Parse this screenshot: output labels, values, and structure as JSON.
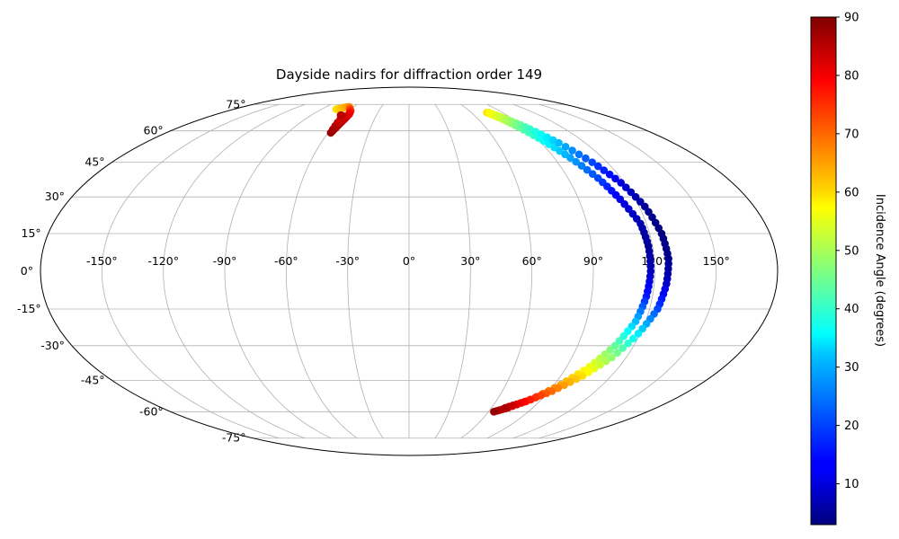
{
  "chart_data": {
    "type": "scatter",
    "projection": "mollweide",
    "title": "Dayside nadirs for diffraction order 149",
    "grid": true,
    "x_ticks": [
      "-150°",
      "-120°",
      "-90°",
      "-60°",
      "-30°",
      "0°",
      "30°",
      "60°",
      "90°",
      "120°",
      "150°"
    ],
    "y_ticks": [
      "-75°",
      "-60°",
      "-45°",
      "-30°",
      "-15°",
      "0°",
      "15°",
      "30°",
      "45°",
      "60°",
      "75°"
    ],
    "lon_grid": [
      -150,
      -120,
      -90,
      -60,
      -30,
      0,
      30,
      60,
      90,
      120,
      150
    ],
    "lat_grid": [
      -75,
      -60,
      -45,
      -30,
      -15,
      15,
      30,
      45,
      60,
      75
    ],
    "colorbar": {
      "label": "Incidence Angle (degrees)",
      "ticks": [
        "10",
        "20",
        "30",
        "40",
        "50",
        "60",
        "70",
        "80",
        "90"
      ],
      "min": 3,
      "max": 90,
      "colormap": "jet"
    },
    "series": [
      {
        "points": [
          {
            "lon": -75,
            "lat": 72,
            "incidence": 60
          },
          {
            "lon": -70,
            "lat": 73,
            "incidence": 63
          },
          {
            "lon": -65,
            "lat": 73.5,
            "incidence": 66
          },
          {
            "lon": -62,
            "lat": 72.5,
            "incidence": 70
          },
          {
            "lon": -58,
            "lat": 71,
            "incidence": 75
          },
          {
            "lon": -56,
            "lat": 69,
            "incidence": 80
          },
          {
            "lon": -56,
            "lat": 66,
            "incidence": 84
          },
          {
            "lon": -57,
            "lat": 62,
            "incidence": 86
          },
          {
            "lon": -58,
            "lat": 59,
            "incidence": 88
          },
          {
            "lon": -60,
            "lat": 68,
            "incidence": 82
          },
          {
            "lon": -63,
            "lat": 68.5,
            "incidence": 85
          },
          {
            "lon": 75,
            "lat": 70,
            "incidence": 60
          },
          {
            "lon": 80,
            "lat": 67,
            "incidence": 54
          },
          {
            "lon": 86,
            "lat": 62,
            "incidence": 45
          },
          {
            "lon": 93,
            "lat": 55,
            "incidence": 36
          },
          {
            "lon": 100,
            "lat": 47,
            "incidence": 28
          },
          {
            "lon": 107,
            "lat": 38,
            "incidence": 20
          },
          {
            "lon": 112,
            "lat": 29,
            "incidence": 12
          },
          {
            "lon": 117,
            "lat": 19,
            "incidence": 7
          },
          {
            "lon": 118,
            "lat": 10,
            "incidence": 5
          },
          {
            "lon": 118,
            "lat": 0,
            "incidence": 8
          },
          {
            "lon": 117,
            "lat": -10,
            "incidence": 16
          },
          {
            "lon": 115,
            "lat": -20,
            "incidence": 30
          },
          {
            "lon": 110,
            "lat": -30,
            "incidence": 44
          },
          {
            "lon": 103,
            "lat": -39,
            "incidence": 56
          },
          {
            "lon": 94,
            "lat": -47,
            "incidence": 65
          },
          {
            "lon": 83,
            "lat": -54,
            "incidence": 74
          },
          {
            "lon": 72,
            "lat": -58,
            "incidence": 82
          },
          {
            "lon": 64,
            "lat": -60,
            "incidence": 88
          },
          {
            "lon": 77,
            "lat": 70,
            "incidence": 58
          },
          {
            "lon": 85,
            "lat": 66,
            "incidence": 50
          },
          {
            "lon": 93,
            "lat": 61,
            "incidence": 40
          },
          {
            "lon": 102,
            "lat": 54,
            "incidence": 30
          },
          {
            "lon": 111,
            "lat": 45,
            "incidence": 20
          },
          {
            "lon": 118,
            "lat": 36,
            "incidence": 11
          },
          {
            "lon": 123,
            "lat": 26,
            "incidence": 5
          },
          {
            "lon": 126,
            "lat": 15,
            "incidence": 3
          },
          {
            "lon": 127,
            "lat": 5,
            "incidence": 4
          },
          {
            "lon": 126,
            "lat": -5,
            "incidence": 9
          },
          {
            "lon": 124,
            "lat": -15,
            "incidence": 20
          },
          {
            "lon": 119,
            "lat": -25,
            "incidence": 34
          },
          {
            "lon": 112,
            "lat": -35,
            "incidence": 48
          },
          {
            "lon": 103,
            "lat": -43,
            "incidence": 60
          },
          {
            "lon": 92,
            "lat": -50,
            "incidence": 70
          },
          {
            "lon": 80,
            "lat": -55,
            "incidence": 79
          },
          {
            "lon": 70,
            "lat": -58,
            "incidence": 86
          }
        ]
      }
    ]
  }
}
